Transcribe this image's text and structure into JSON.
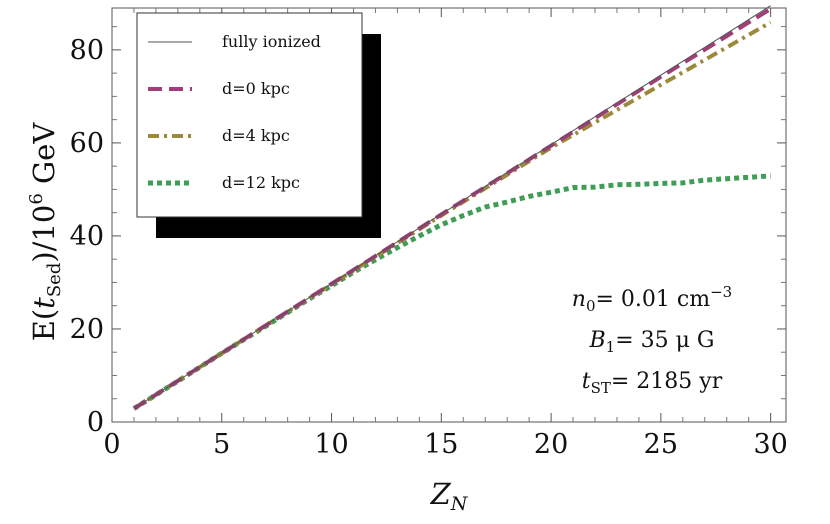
{
  "chart_data": {
    "type": "line",
    "xlabel": "Z",
    "xlabel_sub": "N",
    "ylabel_main": "E(",
    "ylabel_t": "t",
    "ylabel_t_sub": "Sed",
    "ylabel_rest": ")/10",
    "ylabel_exp": "6",
    "ylabel_unit": " GeV",
    "xlim": [
      0,
      30.7
    ],
    "ylim": [
      0,
      89
    ],
    "xticks": [
      0,
      5,
      10,
      15,
      20,
      25,
      30
    ],
    "yticks": [
      0,
      20,
      40,
      60,
      80
    ],
    "grid": false,
    "legend_position": "top-left",
    "series": [
      {
        "name": "fully ionized",
        "color": "#555555",
        "style": "solid",
        "x": [
          1,
          30
        ],
        "y": [
          2.9,
          89.5
        ]
      },
      {
        "name": "d=0 kpc",
        "color": "#a13d77",
        "style": "dashed",
        "x": [
          1,
          5,
          10,
          15,
          20,
          25,
          30
        ],
        "y": [
          2.9,
          14.8,
          29.7,
          44.6,
          59.4,
          74.2,
          88.8
        ]
      },
      {
        "name": "d=4 kpc",
        "color": "#9b8a3a",
        "style": "dashdot",
        "x": [
          1,
          5,
          10,
          15,
          20,
          25,
          30
        ],
        "y": [
          2.9,
          14.8,
          29.6,
          44.4,
          59.0,
          72.5,
          85.9
        ]
      },
      {
        "name": "d=12 kpc",
        "color": "#3f9d55",
        "style": "dotted",
        "x": [
          1,
          3,
          5,
          7,
          9,
          10,
          11,
          12,
          13,
          14,
          15,
          16,
          17,
          18,
          19,
          20,
          21,
          22,
          23,
          24,
          25,
          26,
          27,
          28,
          29,
          30
        ],
        "y": [
          2.9,
          8.8,
          14.8,
          20.6,
          26.5,
          29.3,
          32.2,
          34.9,
          37.5,
          40.0,
          42.4,
          44.4,
          46.2,
          47.3,
          48.5,
          49.4,
          50.4,
          50.5,
          51.0,
          51.1,
          51.3,
          51.4,
          52.0,
          52.3,
          52.6,
          52.9
        ]
      }
    ],
    "annotations": [
      {
        "var": "n",
        "sub": "0",
        "text": "= 0.01 cm",
        "sup": "−3"
      },
      {
        "var": "B",
        "sub": "1",
        "text": "= 35 μ G",
        "sup": ""
      },
      {
        "var": "t",
        "sub": "ST",
        "text": "= 2185 yr",
        "sup": ""
      }
    ]
  }
}
